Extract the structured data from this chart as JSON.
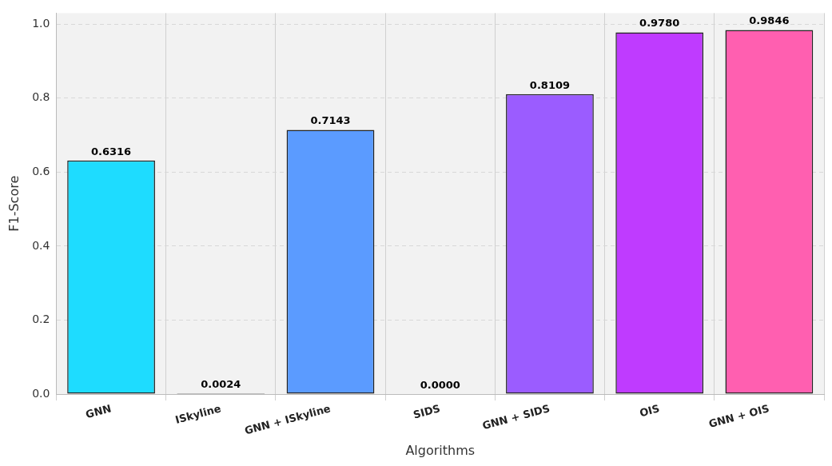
{
  "chart_data": {
    "type": "bar",
    "xlabel": "Algorithms",
    "ylabel": "F1-Score",
    "categories": [
      "GNN",
      "ISkyline",
      "GNN + ISkyline",
      "SIDS",
      "GNN + SIDS",
      "OIS",
      "GNN + OIS"
    ],
    "values": [
      0.6316,
      0.0024,
      0.7143,
      0.0,
      0.8109,
      0.978,
      0.9846
    ],
    "value_labels": [
      "0.6316",
      "0.0024",
      "0.7143",
      "0.0000",
      "0.8109",
      "0.9780",
      "0.9846"
    ],
    "colors": [
      "#1edcff",
      "#222222",
      "#5b9bff",
      "#7b7bff",
      "#9b5cff",
      "#bf3bff",
      "#ff5fb0"
    ],
    "ylim": [
      0,
      1.03
    ],
    "yticks": [
      {
        "value": 0,
        "label": "0.0"
      },
      0.2,
      0.4,
      0.6,
      0.8,
      {
        "value": 1,
        "label": "1.0"
      }
    ],
    "grid": true,
    "legend": false
  }
}
